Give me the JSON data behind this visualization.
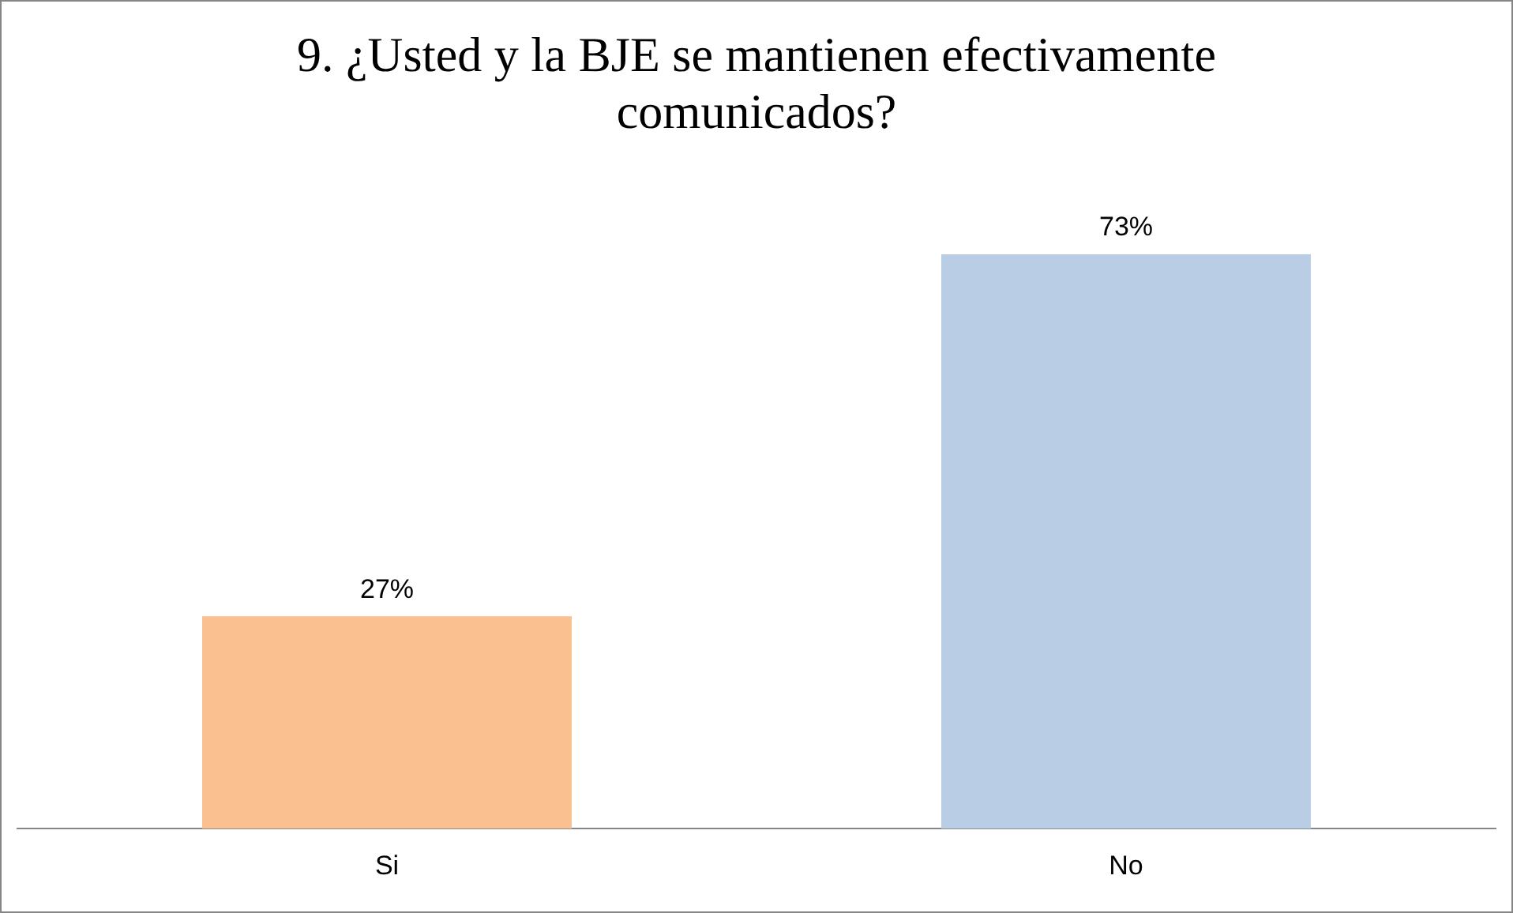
{
  "chart_data": {
    "type": "bar",
    "title": "9. ¿Usted y la BJE se mantienen efectivamente comunicados?",
    "categories": [
      "Si",
      "No"
    ],
    "values": [
      27,
      73
    ],
    "colors": [
      "#fac090",
      "#b9cde5"
    ],
    "value_labels": [
      "27%",
      "73%"
    ],
    "legend": false
  }
}
